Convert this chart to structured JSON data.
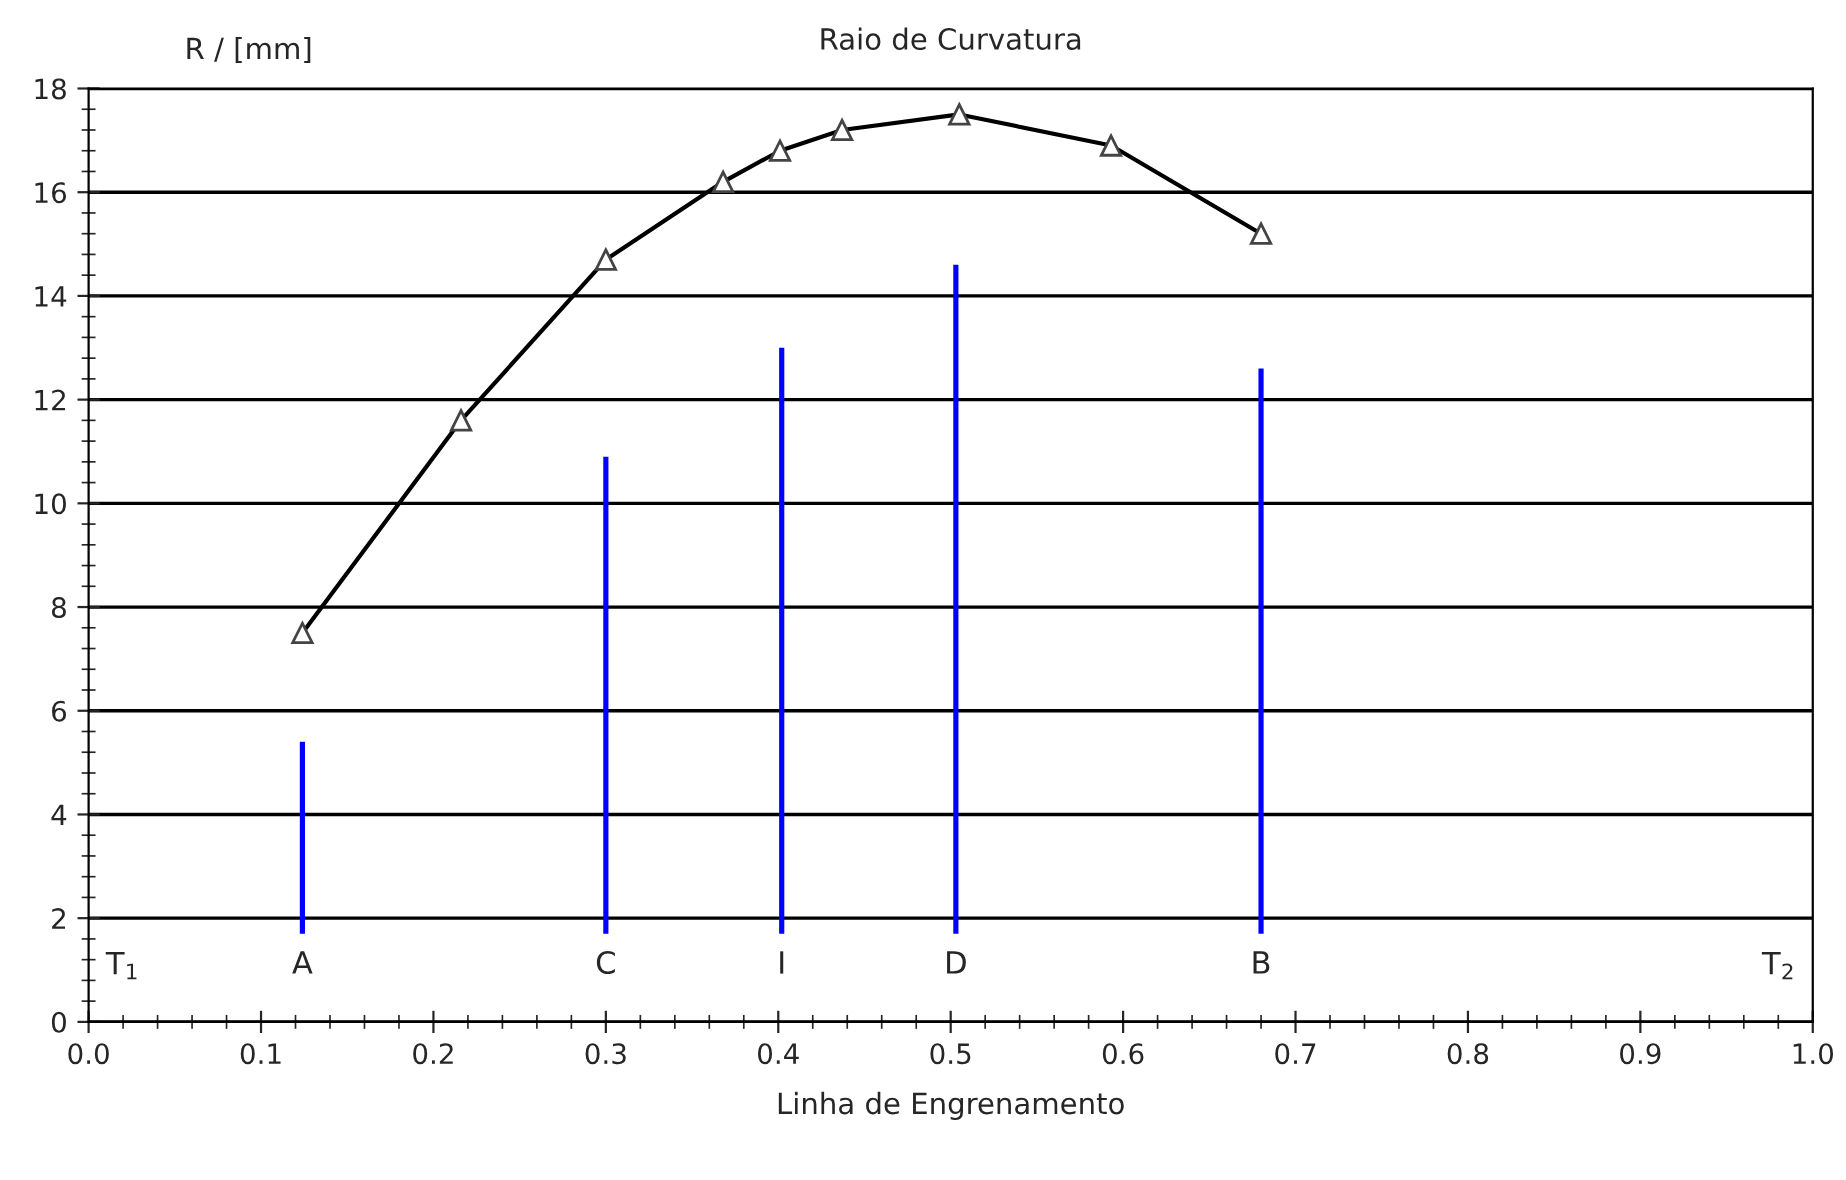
{
  "chart_data": {
    "type": "line",
    "title": "Raio de Curvatura",
    "xlabel": "Linha de Engrenamento",
    "ylabel": "R / [mm]",
    "xlim": [
      0,
      1.0
    ],
    "ylim": [
      0,
      18
    ],
    "xticks": [
      {
        "value": 0,
        "label": "0.0"
      },
      0.1,
      0.2,
      0.3,
      0.4,
      0.5,
      0.6,
      0.7,
      0.8,
      0.9,
      {
        "value": 1.0,
        "label": "1.0"
      }
    ],
    "yticks": [
      0,
      2,
      4,
      6,
      8,
      10,
      12,
      14,
      16,
      18
    ],
    "grid": "y",
    "legend": false,
    "series": [
      {
        "color": "#000000",
        "marker": "triangle",
        "line_style": "solid",
        "x": [
          0.124,
          0.216,
          0.3,
          0.368,
          0.401,
          0.437,
          0.505,
          0.593,
          0.68
        ],
        "values": [
          7.5,
          11.6,
          14.7,
          16.2,
          16.8,
          17.2,
          17.5,
          16.9,
          15.2
        ]
      },
      {
        "type": "bar",
        "color": "#0000ff",
        "x": [
          0.124,
          0.3,
          0.402,
          0.503,
          0.68
        ],
        "base": [
          1.7,
          1.7,
          1.7,
          1.7,
          1.7
        ],
        "values": [
          3.7,
          9.2,
          11.3,
          12.9,
          10.9
        ]
      }
    ],
    "annotations": [
      "T$_{1}$",
      {
        "text": "A",
        "x": 0.124,
        "y": 1.7
      },
      {
        "text": "C",
        "x": 0.3,
        "y": 1.7
      },
      {
        "text": "I",
        "x": 0.402,
        "y": 1.7
      },
      {
        "text": "D",
        "x": 0.503,
        "y": 1.7
      },
      {
        "text": "B",
        "x": 0.68,
        "y": 1.7
      },
      "T$_{2}$"
    ]
  }
}
